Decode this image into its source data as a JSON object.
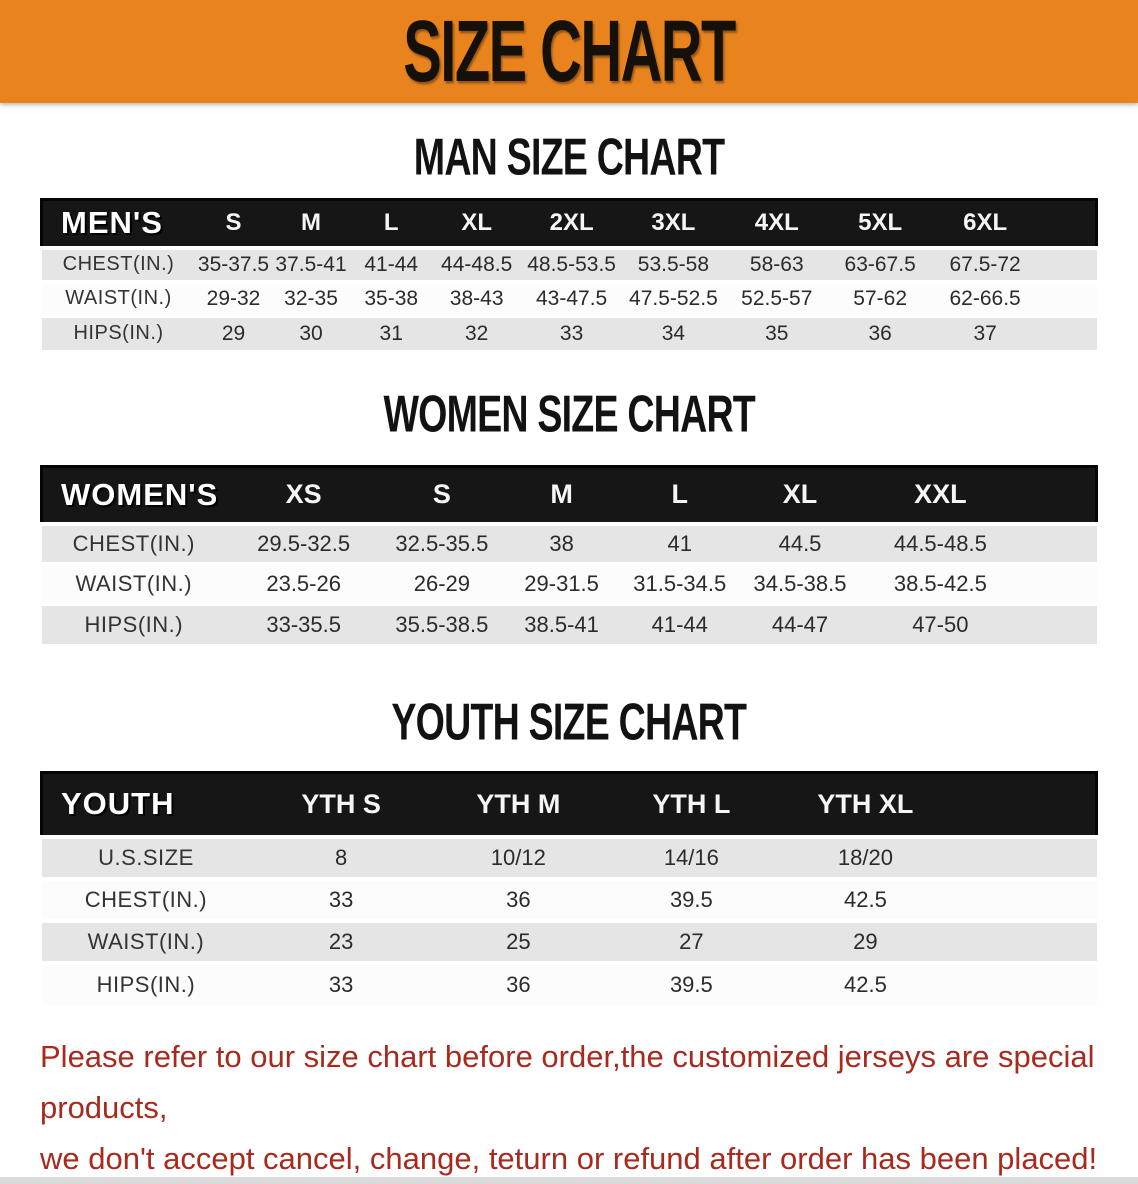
{
  "banner": {
    "title": "SIZE CHART",
    "bg_color": "#E8831D",
    "text_color": "#15100a"
  },
  "sections": [
    {
      "title": "MAN SIZE CHART",
      "table": {
        "header_label": "MEN'S",
        "columns": [
          "S",
          "M",
          "L",
          "XL",
          "2XL",
          "3XL",
          "4XL",
          "5XL",
          "6XL"
        ],
        "rows": [
          {
            "label": "CHEST(IN.)",
            "values": [
              "35-37.5",
              "37.5-41",
              "41-44",
              "44-48.5",
              "48.5-53.5",
              "53.5-58",
              "58-63",
              "63-67.5",
              "67.5-72"
            ]
          },
          {
            "label": "WAIST(IN.)",
            "values": [
              "29-32",
              "32-35",
              "35-38",
              "38-43",
              "43-47.5",
              "47.5-52.5",
              "52.5-57",
              "57-62",
              "62-66.5"
            ]
          },
          {
            "label": "HIPS(IN.)",
            "values": [
              "29",
              "30",
              "31",
              "32",
              "33",
              "34",
              "35",
              "36",
              "37"
            ]
          }
        ]
      }
    },
    {
      "title": "WOMEN SIZE CHART",
      "table": {
        "header_label": "WOMEN'S",
        "columns": [
          "XS",
          "S",
          "M",
          "L",
          "XL",
          "XXL"
        ],
        "rows": [
          {
            "label": "CHEST(IN.)",
            "values": [
              "29.5-32.5",
              "32.5-35.5",
              "38",
              "41",
              "44.5",
              "44.5-48.5"
            ]
          },
          {
            "label": "WAIST(IN.)",
            "values": [
              "23.5-26",
              "26-29",
              "29-31.5",
              "31.5-34.5",
              "34.5-38.5",
              "38.5-42.5"
            ]
          },
          {
            "label": "HIPS(IN.)",
            "values": [
              "33-35.5",
              "35.5-38.5",
              "38.5-41",
              "41-44",
              "44-47",
              "47-50"
            ]
          }
        ]
      }
    },
    {
      "title": "YOUTH SIZE CHART",
      "table": {
        "header_label": "YOUTH",
        "columns": [
          "YTH S",
          "YTH M",
          "YTH L",
          "YTH XL"
        ],
        "rows": [
          {
            "label": "U.S.SIZE",
            "values": [
              "8",
              "10/12",
              "14/16",
              "18/20"
            ]
          },
          {
            "label": "CHEST(IN.)",
            "values": [
              "33",
              "36",
              "39.5",
              "42.5"
            ]
          },
          {
            "label": "WAIST(IN.)",
            "values": [
              "23",
              "25",
              "27",
              "29"
            ]
          },
          {
            "label": "HIPS(IN.)",
            "values": [
              "33",
              "36",
              "39.5",
              "42.5"
            ]
          }
        ]
      }
    }
  ],
  "footer_note": {
    "line1": "Please refer to our size chart before order,the customized jerseys are special products,",
    "line2": "we don't accept cancel, change, teturn or refund after order has been placed!",
    "text_color": "#A82A1E"
  }
}
